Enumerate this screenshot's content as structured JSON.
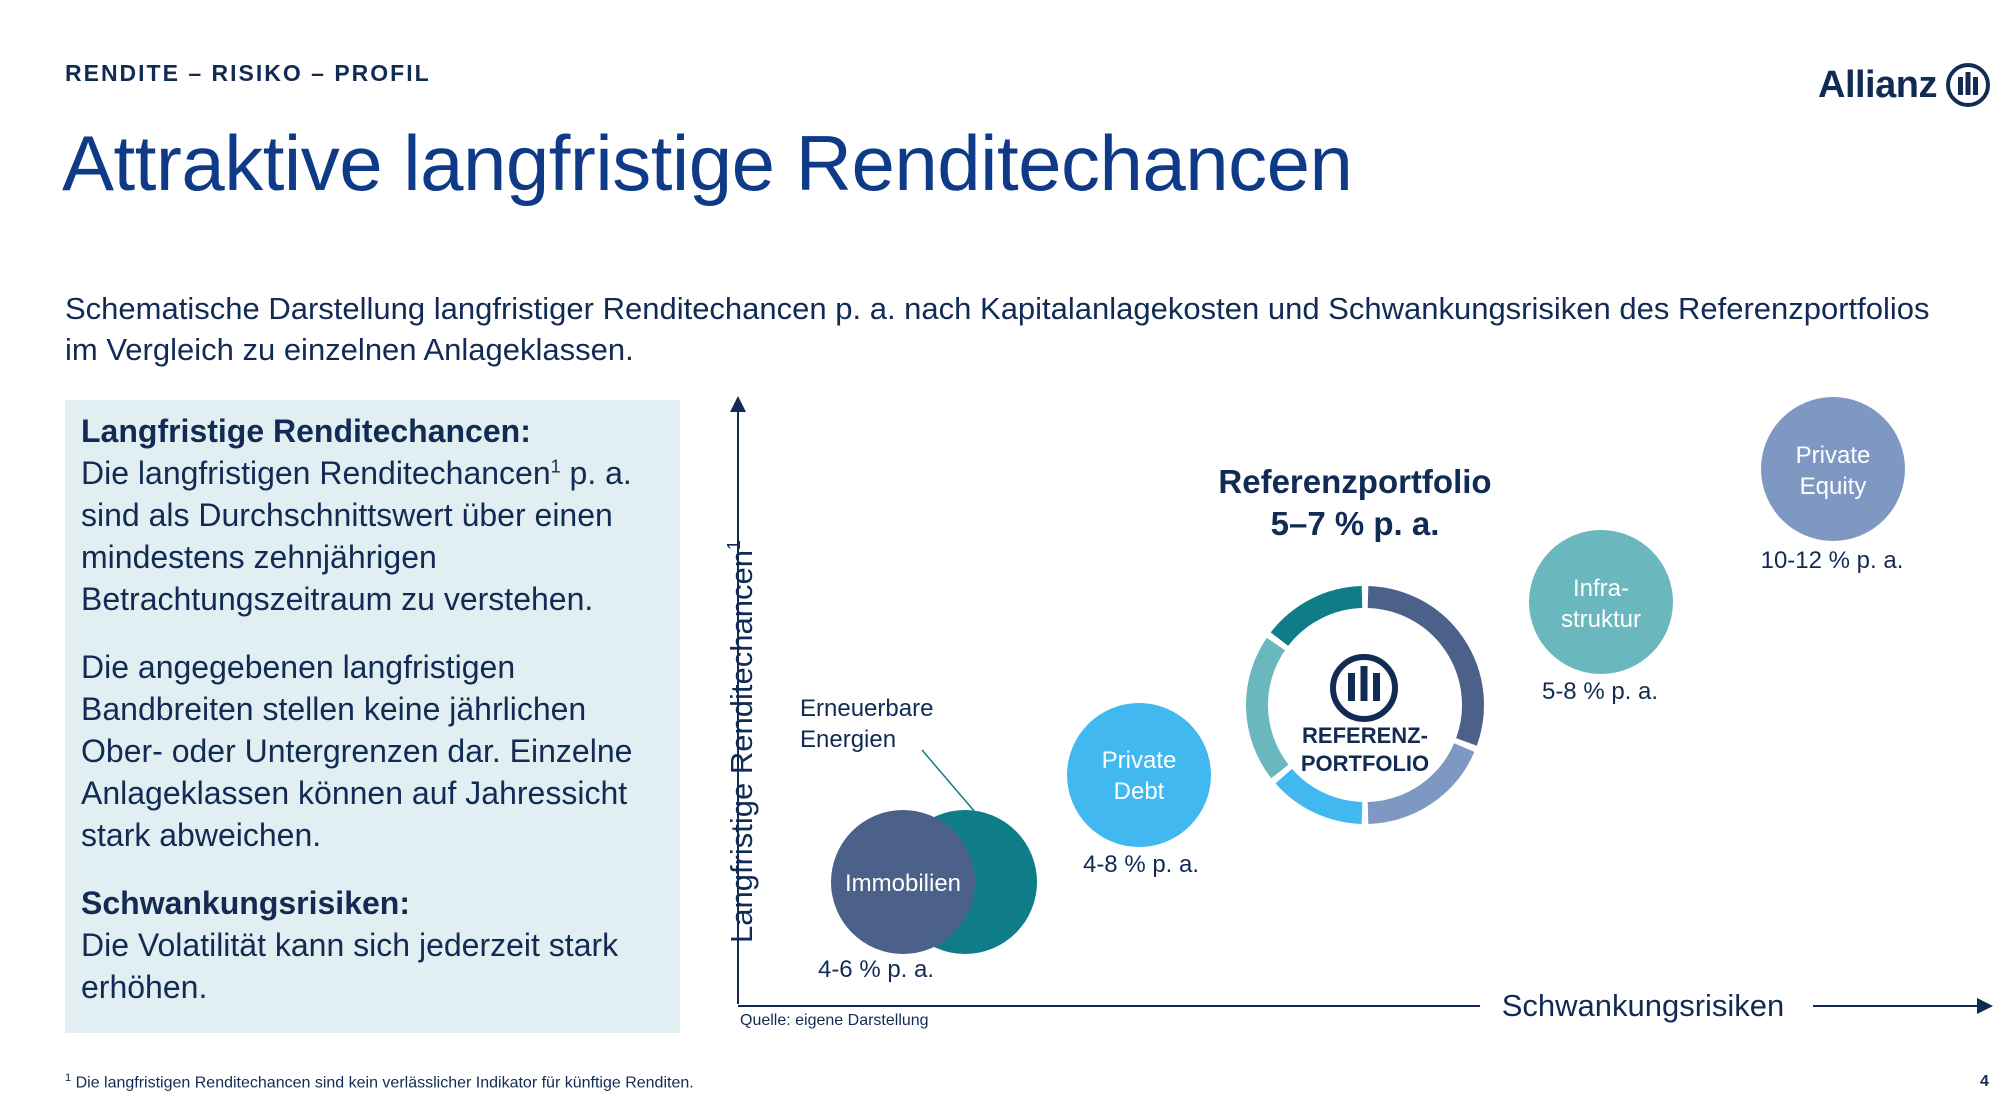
{
  "header": {
    "eyebrow": "RENDITE – RISIKO – PROFIL",
    "logo_text": "Allianz",
    "title": "Attraktive langfristige Renditechancen"
  },
  "intro": "Schematische Darstellung langfristiger Renditechancen p. a. nach Kapitalanlagekosten und Schwankungsrisiken des Referenzportfolios im Vergleich zu einzelnen Anlageklassen.",
  "info_box": {
    "heading_1": "Langfristige Renditechancen:",
    "text_1": "Die langfristigen Renditechancen",
    "text_1_sup": "1",
    "text_1_rest": "p. a. sind als Durchschnittswert über einen mindestens zehnjährigen Betrachtungszeitraum zu verstehen.",
    "text_2": "Die angegebenen langfristigen Bandbreiten stellen keine jährlichen Ober- oder Untergrenzen dar. Einzelne Anlageklassen können auf Jahressicht stark abweichen.",
    "heading_2": "Schwankungsrisiken:",
    "text_3": "Die Volatilität kann sich jederzeit stark erhöhen."
  },
  "chart": {
    "y_axis_label": "Langfristige Renditechancen",
    "y_axis_sup": "1",
    "x_axis_label": "Schwankungsrisiken",
    "renewables_label_1": "Erneuerbare",
    "renewables_label_2": "Energien",
    "immobilien_label": "Immobilien",
    "immobilien_range": "4-6 % p. a.",
    "private_debt_label_1": "Private",
    "private_debt_label_2": "Debt",
    "private_debt_range": "4-8 % p. a.",
    "reference_title": "Referenzportfolio",
    "reference_range": "5–7 % p. a.",
    "reference_center_1": "REFERENZ-",
    "reference_center_2": "PORTFOLIO",
    "infra_label_1": "Infra-",
    "infra_label_2": "struktur",
    "infra_range": "5-8 % p. a.",
    "pe_label_1": "Private",
    "pe_label_2": "Equity",
    "pe_range": "10-12 % p. a.",
    "donut_segments": [
      {
        "name": "dark-blue",
        "fraction": 0.31,
        "color": "#4b6189"
      },
      {
        "name": "grey-blue",
        "fraction": 0.19,
        "color": "#7f97c3"
      },
      {
        "name": "light-blue",
        "fraction": 0.14,
        "color": "#41b8f0"
      },
      {
        "name": "light-teal",
        "fraction": 0.21,
        "color": "#6ab7bd"
      },
      {
        "name": "dark-teal",
        "fraction": 0.15,
        "color": "#0e7d88"
      }
    ]
  },
  "colors": {
    "navy": "#122b54",
    "title_blue": "#0f3a87",
    "box_bg": "#e1eff2",
    "immobilien": "#4b6189",
    "renewables": "#0e7d88",
    "private_debt": "#41b8f0",
    "infrastructure": "#6ab7bd",
    "private_equity": "#7f97c3"
  },
  "source": "Quelle: eigene Darstellung",
  "footnote_sup": "1",
  "footnote": "Die langfristigen Renditechancen sind kein verlässlicher Indikator für künftige Renditen.",
  "page_number": "4"
}
